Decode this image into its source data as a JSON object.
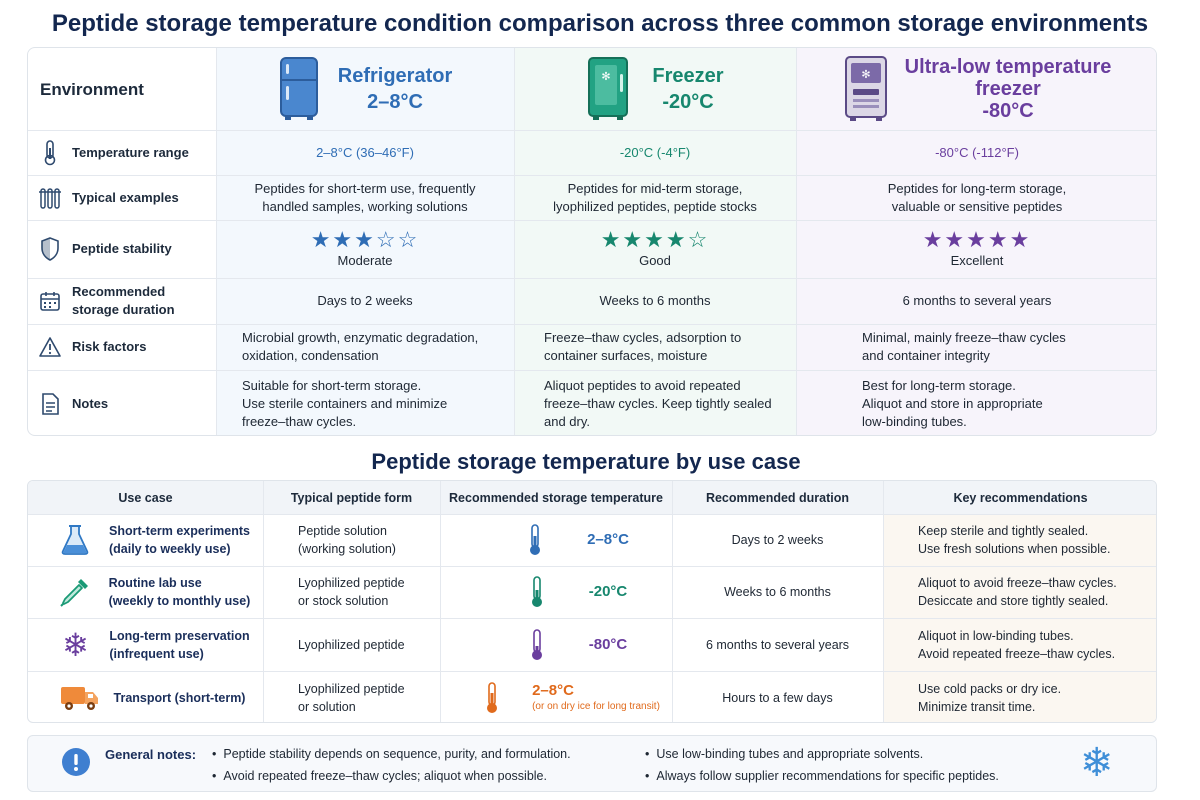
{
  "title": "Peptide storage temperature condition comparison across three common storage environments",
  "comparison": {
    "corner_label": "Environment",
    "environments": [
      {
        "name": "Refrigerator",
        "temp": "2–8°C",
        "color": "#2f6db5",
        "bg": "#eef5fc",
        "icon": "refrigerator-icon"
      },
      {
        "name": "Freezer",
        "temp": "-20°C",
        "color": "#17876e",
        "bg": "#ecf7f3",
        "icon": "freezer-icon"
      },
      {
        "name": "Ultra-low temperature freezer",
        "name_line1": "Ultra-low temperature",
        "name_line2": "freezer",
        "temp": "-80°C",
        "color": "#6a3e9e",
        "bg": "#f3eefa",
        "icon": "ultra-low-freezer-icon"
      }
    ],
    "rows": [
      {
        "label": "Temperature range",
        "icon": "thermometer-icon",
        "values": [
          [
            "2–8°C (36–46°F)"
          ],
          [
            "-20°C (-4°F)"
          ],
          [
            "-80°C (-112°F)"
          ]
        ]
      },
      {
        "label": "Typical examples",
        "icon": "test-tubes-icon",
        "values": [
          [
            "Peptides for short-term use, frequently",
            "handled samples, working solutions"
          ],
          [
            "Peptides for mid-term storage,",
            "lyophilized peptides, peptide stocks"
          ],
          [
            "Peptides for long-term storage,",
            "valuable or sensitive peptides"
          ]
        ]
      },
      {
        "label": "Peptide stability",
        "icon": "shield-icon",
        "ratings": [
          3,
          4,
          5
        ],
        "rating_max": 5,
        "values": [
          [
            "Moderate"
          ],
          [
            "Good"
          ],
          [
            "Excellent"
          ]
        ]
      },
      {
        "label_line1": "Recommended",
        "label_line2": "storage duration",
        "icon": "calendar-icon",
        "values": [
          [
            "Days to 2 weeks"
          ],
          [
            "Weeks to 6 months"
          ],
          [
            "6 months to several years"
          ]
        ]
      },
      {
        "label": "Risk factors",
        "icon": "warning-icon",
        "values": [
          [
            "Microbial growth, enzymatic degradation,",
            "oxidation, condensation"
          ],
          [
            "Freeze–thaw cycles, adsorption to",
            "container surfaces, moisture"
          ],
          [
            "Minimal, mainly freeze–thaw cycles",
            "and container integrity"
          ]
        ]
      },
      {
        "label": "Notes",
        "icon": "document-icon",
        "values": [
          [
            "Suitable for short-term storage.",
            "Use sterile containers and minimize",
            "freeze–thaw cycles."
          ],
          [
            "Aliquot peptides to avoid repeated",
            "freeze–thaw cycles. Keep tightly sealed",
            "and dry."
          ],
          [
            "Best for long-term storage.",
            "Aliquot and store in appropriate",
            "low-binding tubes."
          ]
        ]
      }
    ]
  },
  "use_case_title": "Peptide storage temperature by use case",
  "use_case": {
    "headers": [
      "Use case",
      "Typical peptide form",
      "Recommended storage temperature",
      "Recommended duration",
      "Key recommendations"
    ],
    "rows": [
      {
        "case": [
          "Short-term experiments",
          "(daily to weekly use)"
        ],
        "icon": "flask-icon",
        "icon_color": "#2f78c4",
        "form": [
          "Peptide solution",
          "(working solution)"
        ],
        "temp": "2–8°C",
        "temp_color": "#2f6db5",
        "duration": "Days to 2 weeks",
        "recs": [
          "Keep sterile and tightly sealed.",
          "Use fresh solutions when possible."
        ]
      },
      {
        "case": [
          "Routine lab use",
          "(weekly to monthly use)"
        ],
        "icon": "pipette-icon",
        "icon_color": "#1b9a76",
        "form": [
          "Lyophilized peptide",
          "or stock solution"
        ],
        "temp": "-20°C",
        "temp_color": "#17876e",
        "duration": "Weeks to 6 months",
        "recs": [
          "Aliquot to avoid freeze–thaw cycles.",
          "Desiccate and store tightly sealed."
        ]
      },
      {
        "case": [
          "Long-term preservation",
          "(infrequent use)"
        ],
        "icon": "snowflake-icon",
        "icon_color": "#6a3e9e",
        "form": [
          "Lyophilized peptide"
        ],
        "temp": "-80°C",
        "temp_color": "#6a3e9e",
        "duration": "6 months to several years",
        "recs": [
          "Aliquot in low-binding tubes.",
          "Avoid repeated freeze–thaw cycles."
        ]
      },
      {
        "case": [
          "Transport (short-term)"
        ],
        "icon": "truck-icon",
        "icon_color": "#e8782a",
        "form": [
          "Lyophilized peptide",
          "or solution"
        ],
        "temp": "2–8°C",
        "temp_color": "#e06a1c",
        "temp_note": "(or on dry ice for long transit)",
        "duration": "Hours to a few days",
        "recs": [
          "Use cold packs or dry ice.",
          "Minimize transit time."
        ]
      }
    ]
  },
  "general_notes": {
    "title": "General notes:",
    "items": [
      "Peptide stability depends on sequence, purity, and formulation.",
      "Avoid repeated freeze–thaw cycles; aliquot when possible.",
      "Use low-binding tubes and appropriate solvents.",
      "Always follow supplier recommendations for specific peptides."
    ]
  }
}
